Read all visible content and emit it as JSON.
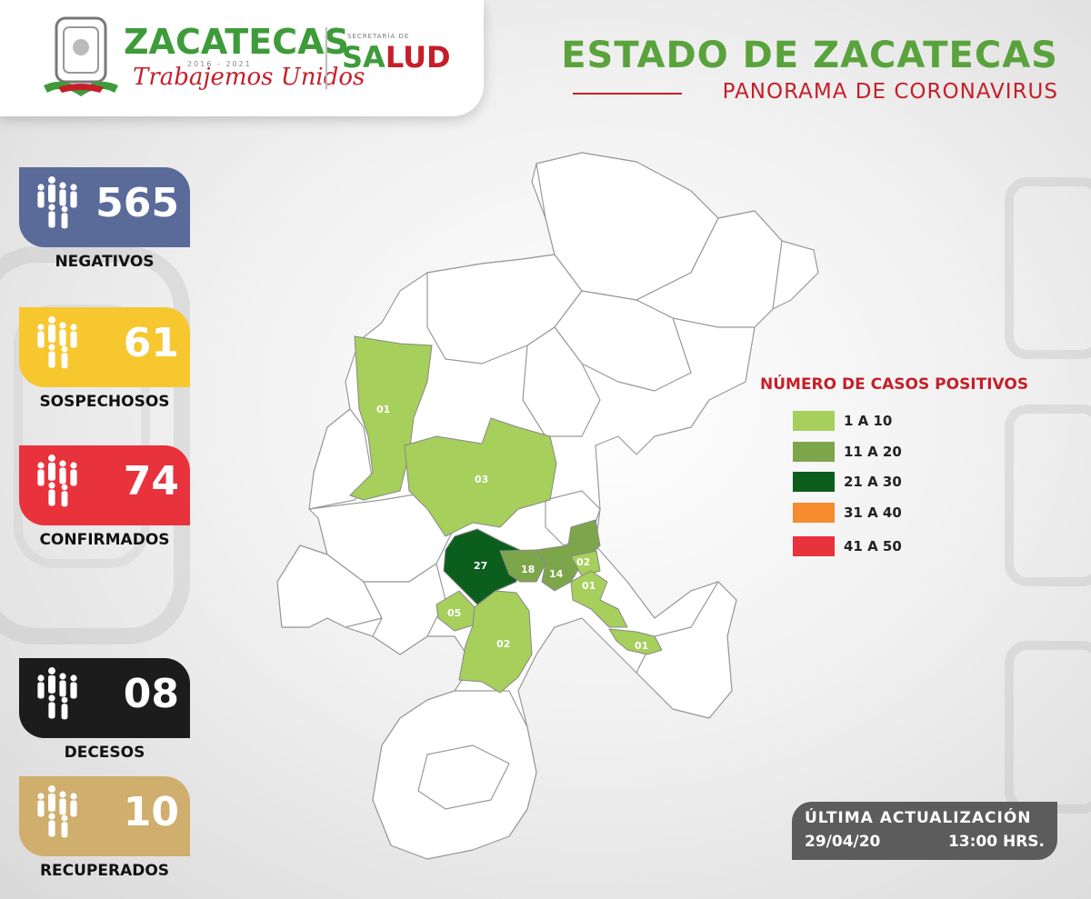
{
  "header": {
    "brand_name": "ZACATECAS",
    "brand_years": "2016 - 2021",
    "brand_tagline": "Trabajemos Unidos",
    "secretaria_label": "SECRETARÍA DE",
    "salud_label_a": "SA",
    "salud_label_b": "LUD"
  },
  "title": {
    "main": "ESTADO DE ZACATECAS",
    "subtitle": "PANORAMA DE CORONAVIRUS"
  },
  "stats": [
    {
      "value": "565",
      "label": "NEGATIVOS",
      "color": "#5a6b9a"
    },
    {
      "value": "61",
      "label": "SOSPECHOSOS",
      "color": "#f7c730"
    },
    {
      "value": "74",
      "label": "CONFIRMADOS",
      "color": "#e8323c"
    },
    {
      "value": "08",
      "label": "DECESOS",
      "color": "#1c1c1c"
    },
    {
      "value": "10",
      "label": "RECUPERADOS",
      "color": "#cfae6e"
    }
  ],
  "legend": {
    "title": "NÚMERO DE CASOS POSITIVOS",
    "items": [
      {
        "label": "1 A 10",
        "color": "#a6cf5b"
      },
      {
        "label": "11 A 20",
        "color": "#7da64b"
      },
      {
        "label": "21 A 30",
        "color": "#0c5e1d"
      },
      {
        "label": "31 A 40",
        "color": "#f58a2e"
      },
      {
        "label": "41 A 50",
        "color": "#e8323c"
      }
    ]
  },
  "map_labels": {
    "r01a": "01",
    "r03": "03",
    "r27": "27",
    "r18": "18",
    "r14": "14",
    "r02a": "02",
    "r01b": "01",
    "r05": "05",
    "r02b": "02",
    "r01c": "01"
  },
  "update": {
    "title": "ÚLTIMA ACTUALIZACIÓN",
    "date": "29/04/20",
    "time": "13:00 HRS."
  }
}
